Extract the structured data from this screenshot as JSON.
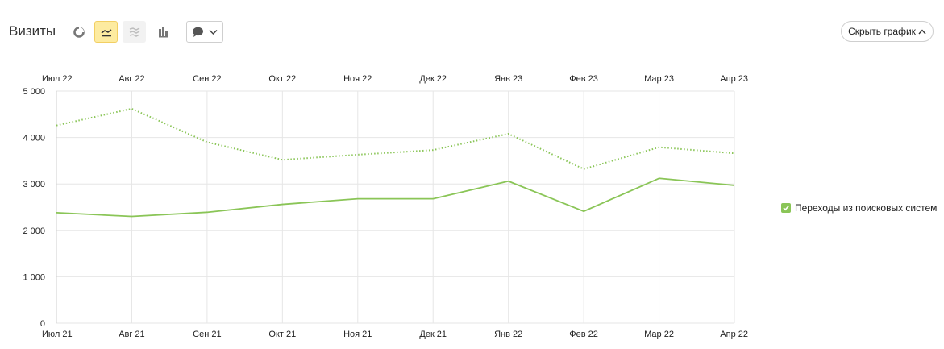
{
  "header": {
    "title": "Визиты",
    "hide_chart_label": "Скрыть график"
  },
  "toolbar": {
    "icons": [
      "pie-chart-icon",
      "line-chart-icon",
      "stacked-area-icon",
      "bar-chart-icon",
      "comment-icon",
      "chevron-down-icon"
    ],
    "active": "line-chart-icon"
  },
  "colors": {
    "series": "#8ac557",
    "grid": "#e6e6e6",
    "active_bg": "#fdeba0"
  },
  "legend": {
    "label": "Переходы из поисковых систем",
    "checked": true
  },
  "chart_data": {
    "type": "line",
    "x_bottom": [
      "Июл 21",
      "Авг 21",
      "Сен 21",
      "Окт 21",
      "Ноя 21",
      "Дек 21",
      "Янв 22",
      "Фев 22",
      "Мар 22",
      "Апр 22"
    ],
    "x_top": [
      "Июл 22",
      "Авг 22",
      "Сен 22",
      "Окт 22",
      "Ноя 22",
      "Дек 22",
      "Янв 23",
      "Фев 23",
      "Мар 23",
      "Апр 23"
    ],
    "yticks": [
      "0",
      "1 000",
      "2 000",
      "3 000",
      "4 000",
      "5 000"
    ],
    "ylim": [
      0,
      5000
    ],
    "grid": true,
    "legend_position": "right",
    "series": [
      {
        "name": "Переходы из поисковых систем",
        "period": "bottom axis",
        "style": "solid",
        "values": [
          2380,
          2300,
          2390,
          2560,
          2680,
          2680,
          3060,
          2410,
          3120,
          2970
        ]
      },
      {
        "name": "Переходы из поисковых систем",
        "period": "top axis",
        "style": "dotted",
        "values": [
          4260,
          4620,
          3900,
          3520,
          3630,
          3730,
          4080,
          3320,
          3790,
          3660
        ]
      }
    ]
  }
}
